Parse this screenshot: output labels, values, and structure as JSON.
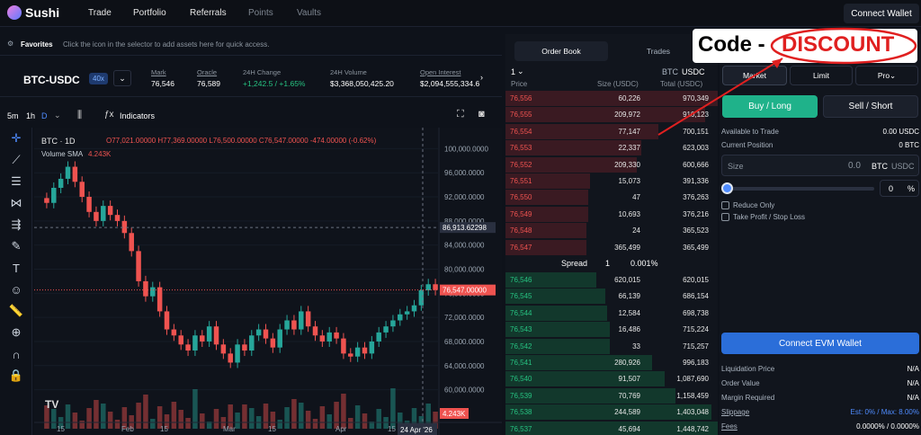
{
  "nav": {
    "brand": "Sushi",
    "items": [
      "Trade",
      "Portfolio",
      "Referrals",
      "Points",
      "Vaults"
    ],
    "connect": "Connect Wallet"
  },
  "favorites": {
    "label": "Favorites",
    "hint": "Click the  icon in the selector to add assets here for quick access."
  },
  "market": {
    "pair": "BTC-USDC",
    "leverage": "40x",
    "stats": [
      {
        "label": "Mark",
        "value": "76,546"
      },
      {
        "label": "Oracle",
        "value": "76,589"
      },
      {
        "label": "24H Change",
        "value": "+1,242.5 / +1.65%"
      },
      {
        "label": "24H Volume",
        "value": "$3,368,050,425.20"
      },
      {
        "label": "Open Interest",
        "value": "$2,094,555,334.6"
      }
    ]
  },
  "toolbar": {
    "intervals": [
      "5m",
      "1h",
      "D"
    ],
    "indicators": "Indicators"
  },
  "chart": {
    "legend_pair": "BTC · 1D",
    "ohlc": "O77,021.00000  H77,369.00000  L76,500.00000  C76,547.00000  -474.00000 (-0.62%)",
    "vol_label": "Volume SMA",
    "vol_value": "4.243K",
    "crosshair_price": "86,913.62298",
    "last_price": "76,547.00000",
    "vol_tag": "4.243K",
    "date_tag": "24 Apr '26",
    "x_ticks": [
      "15",
      "Feb",
      "15",
      "Mar",
      "15",
      "Apr",
      "15"
    ]
  },
  "chart_data": {
    "type": "line",
    "title": "",
    "yticks": [
      "100,000.0000",
      "96,000.0000",
      "92,000.0000",
      "88,000.0000",
      "84,000.0000",
      "80,000.0000",
      "76,000.0000",
      "72,000.0000",
      "68,000.0000",
      "64,000.0000",
      "60,000.0000"
    ],
    "ylim": [
      58000,
      102000
    ],
    "series": [
      {
        "values": [
          91000,
          93500,
          95000,
          97000,
          94500,
          92000,
          89500,
          88000,
          90500,
          89000,
          88000,
          86000,
          83000,
          78000,
          75500,
          77000,
          73000,
          70000,
          69000,
          67500,
          66500,
          69000,
          68000,
          70500,
          67500,
          66000,
          64500,
          67500,
          66500,
          69000,
          70000,
          68500,
          67000,
          70000,
          71500,
          70000,
          73000,
          70500,
          69000,
          68000,
          69500,
          68500,
          66000,
          65500,
          67000,
          66000,
          68000,
          69500,
          70500,
          71500,
          72500,
          73000,
          74000,
          76500,
          77500,
          76547
        ]
      }
    ]
  },
  "orderbook": {
    "tabs": [
      "Order Book",
      "Trades"
    ],
    "group": "1",
    "unit_a": "BTC",
    "unit_b": "USDC",
    "headers": [
      "Price",
      "Size (USDC)",
      "Total (USDC)"
    ],
    "asks": [
      [
        "76,556",
        "60,226",
        "970,349"
      ],
      [
        "76,555",
        "209,972",
        "910,123"
      ],
      [
        "76,554",
        "77,147",
        "700,151"
      ],
      [
        "76,553",
        "22,337",
        "623,003"
      ],
      [
        "76,552",
        "209,330",
        "600,666"
      ],
      [
        "76,551",
        "15,073",
        "391,336"
      ],
      [
        "76,550",
        "47",
        "376,263"
      ],
      [
        "76,549",
        "10,693",
        "376,216"
      ],
      [
        "76,548",
        "24",
        "365,523"
      ],
      [
        "76,547",
        "365,499",
        "365,499"
      ]
    ],
    "ask_depth": [
      1.0,
      0.94,
      0.72,
      0.64,
      0.62,
      0.4,
      0.39,
      0.39,
      0.38,
      0.38
    ],
    "spread": {
      "label": "Spread",
      "value": "1",
      "pct": "0.001%"
    },
    "bids": [
      [
        "76,546",
        "620,015",
        "620,015"
      ],
      [
        "76,545",
        "66,139",
        "686,154"
      ],
      [
        "76,544",
        "12,584",
        "698,738"
      ],
      [
        "76,543",
        "16,486",
        "715,224"
      ],
      [
        "76,542",
        "33",
        "715,257"
      ],
      [
        "76,541",
        "280,926",
        "996,183"
      ],
      [
        "76,540",
        "91,507",
        "1,087,690"
      ],
      [
        "76,539",
        "70,769",
        "1,158,459"
      ],
      [
        "76,538",
        "244,589",
        "1,403,048"
      ],
      [
        "76,537",
        "45,694",
        "1,448,742"
      ]
    ],
    "bid_depth": [
      0.43,
      0.47,
      0.48,
      0.49,
      0.49,
      0.69,
      0.75,
      0.8,
      0.97,
      1.0
    ]
  },
  "trade": {
    "order_types": [
      "Market",
      "Limit",
      "Pro"
    ],
    "buy": "Buy / Long",
    "sell": "Sell / Short",
    "available_label": "Available to Trade",
    "available_value": "0.00 USDC",
    "position_label": "Current Position",
    "position_value": "0 BTC",
    "size_label": "Size",
    "size_value": "0.0",
    "unit_btc": "BTC",
    "unit_usdc": "USDC",
    "pct_value": "0",
    "pct_sign": "%",
    "reduce_only": "Reduce Only",
    "tpsl": "Take Profit / Stop Loss",
    "connect": "Connect EVM Wallet",
    "info": [
      [
        "Liquidation Price",
        "N/A"
      ],
      [
        "Order Value",
        "N/A"
      ],
      [
        "Margin Required",
        "N/A"
      ],
      [
        "Slippage",
        "Est: 0% / Max: 8.00%"
      ],
      [
        "Fees",
        "0.0000% / 0.0000%"
      ]
    ]
  },
  "callout": {
    "prefix": "Code -",
    "code": "DISCOUNT"
  },
  "colors": {
    "up": "#26a69a",
    "down": "#ef5350",
    "accent": "#2b6ed9",
    "buy": "#1fb28a"
  }
}
